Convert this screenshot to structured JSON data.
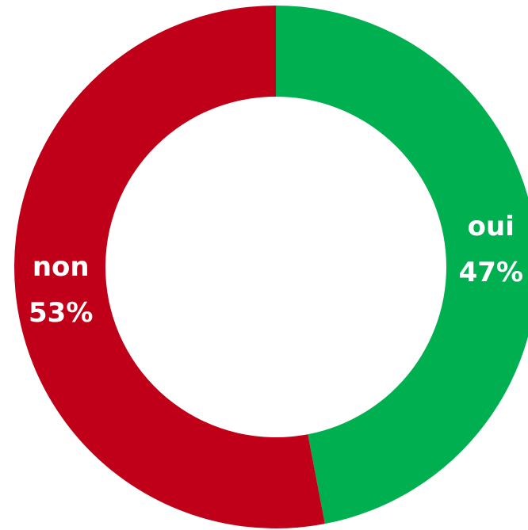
{
  "chart_data": {
    "type": "donut",
    "categories": [
      "oui",
      "non"
    ],
    "values": [
      47,
      53
    ],
    "value_labels": [
      "47%",
      "53%"
    ],
    "colors": [
      "#00b050",
      "#c00018"
    ]
  }
}
